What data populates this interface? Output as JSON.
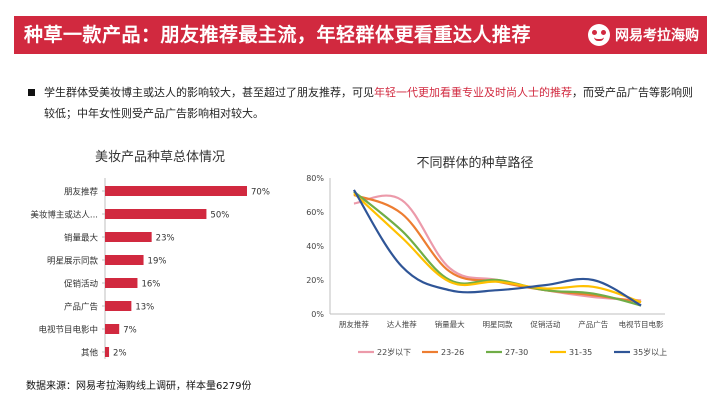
{
  "header": {
    "title": "种草一款产品：朋友推荐最主流，年轻群体更看重达人推荐",
    "logo_text": "网易考拉海购"
  },
  "bullet": {
    "text_before": "学生群体受美妆博主或达人的影响较大，甚至超过了朋友推荐，可见",
    "text_highlight": "年轻一代更加看重专业及时尚人士的推荐",
    "text_after": "，而受产品广告等影响则较低；中年女性则受产品广告影响相对较大。"
  },
  "source": "数据来源：网易考拉海购线上调研，样本量6279份",
  "colors": {
    "accent": "#d1293f",
    "bar": "#d1293f"
  },
  "chart_data": [
    {
      "type": "bar",
      "title": "美妆产品种草总体情况",
      "orientation": "horizontal",
      "categories": [
        "朋友推荐",
        "美妆博主或达人...",
        "销量最大",
        "明星展示同款",
        "促销活动",
        "产品广告",
        "电视节目电影中",
        "其他"
      ],
      "values": [
        70,
        50,
        23,
        19,
        16,
        13,
        7,
        2
      ],
      "value_labels": [
        "70%",
        "50%",
        "23%",
        "19%",
        "16%",
        "13%",
        "7%",
        "2%"
      ],
      "xlim": [
        0,
        70
      ]
    },
    {
      "type": "line",
      "title": "不同群体的种草路径",
      "categories": [
        "朋友推荐",
        "达人推荐",
        "销量最大",
        "明星同款",
        "促销活动",
        "产品广告",
        "电视节目电影"
      ],
      "y_ticks": [
        "0%",
        "20%",
        "40%",
        "60%",
        "80%"
      ],
      "ylim": [
        0,
        80
      ],
      "smooth": true,
      "legend_position": "bottom",
      "series": [
        {
          "name": "22岁以下",
          "color": "#ec9aaa",
          "values": [
            65,
            67,
            27,
            20,
            14,
            10,
            8
          ]
        },
        {
          "name": "23-26",
          "color": "#ed7d31",
          "values": [
            70,
            59,
            25,
            19,
            14,
            11,
            7
          ]
        },
        {
          "name": "27-30",
          "color": "#70ad47",
          "values": [
            72,
            49,
            20,
            20,
            14,
            12,
            5
          ]
        },
        {
          "name": "31-35",
          "color": "#ffc000",
          "values": [
            71,
            45,
            19,
            19,
            15,
            16,
            7
          ]
        },
        {
          "name": "35岁以上",
          "color": "#2f5597",
          "values": [
            73,
            28,
            14,
            14,
            17,
            20,
            5
          ]
        }
      ]
    }
  ]
}
